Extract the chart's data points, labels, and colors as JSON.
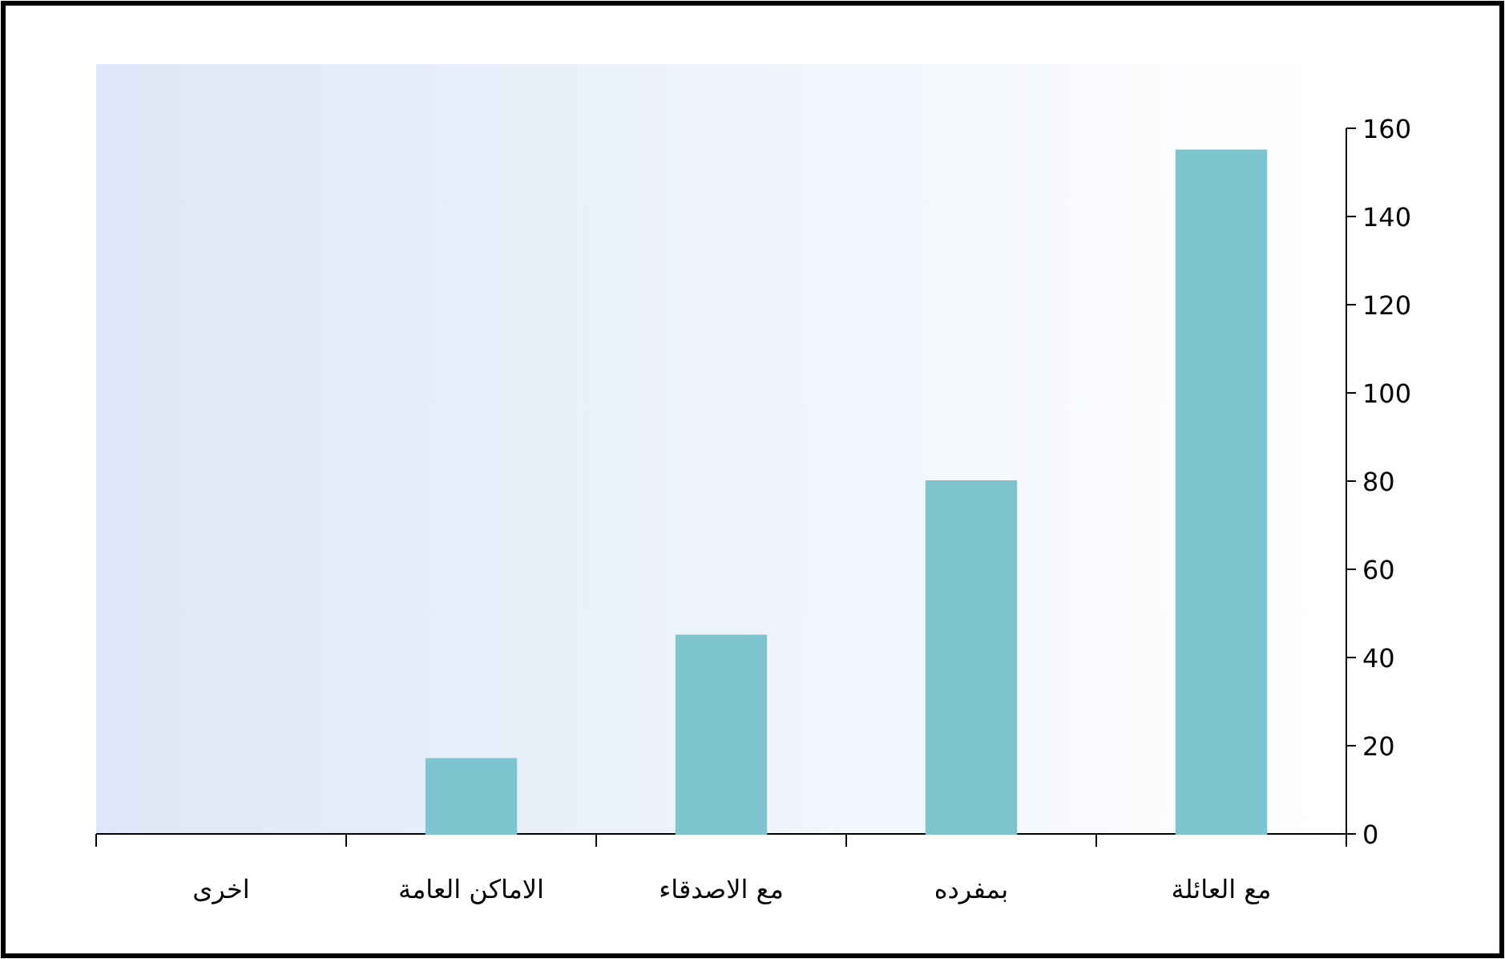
{
  "chart_data": {
    "type": "bar",
    "categories": [
      "اخرى",
      "الاماكن العامة",
      "مع الاصدقاء",
      "بمفرده",
      "مع العائلة"
    ],
    "values": [
      0,
      17,
      45,
      80,
      155
    ],
    "color": "#7ec4cf",
    "ylim": [
      0,
      160
    ],
    "yticks": [
      0,
      20,
      40,
      60,
      80,
      100,
      120,
      140,
      160
    ],
    "grid": false
  }
}
